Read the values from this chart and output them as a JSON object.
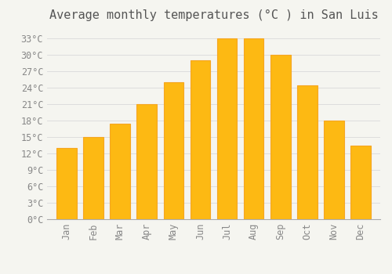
{
  "title": "Average monthly temperatures (°C ) in San Luis",
  "months": [
    "Jan",
    "Feb",
    "Mar",
    "Apr",
    "May",
    "Jun",
    "Jul",
    "Aug",
    "Sep",
    "Oct",
    "Nov",
    "Dec"
  ],
  "values": [
    13,
    15,
    17.5,
    21,
    25,
    29,
    33,
    33,
    30,
    24.5,
    18,
    13.5
  ],
  "bar_color": "#FDB913",
  "bar_edge_color": "#F5A623",
  "background_color": "#F5F5F0",
  "plot_bg_color": "#F5F5F0",
  "grid_color": "#DDDDDD",
  "ylim": [
    0,
    35
  ],
  "yticks": [
    0,
    3,
    6,
    9,
    12,
    15,
    18,
    21,
    24,
    27,
    30,
    33
  ],
  "title_fontsize": 11,
  "tick_fontsize": 8.5,
  "title_color": "#555555",
  "tick_color": "#888888"
}
